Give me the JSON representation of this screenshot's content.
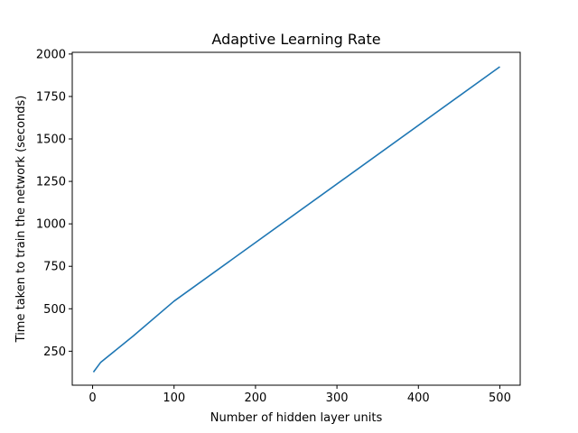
{
  "chart_data": {
    "type": "line",
    "title": "Adaptive Learning Rate",
    "xlabel": "Number of hidden layer units",
    "ylabel": "Time taken to train the network (seconds)",
    "xlim": [
      -25,
      525
    ],
    "ylim": [
      50,
      2010
    ],
    "xticks": [
      0,
      100,
      200,
      300,
      400,
      500
    ],
    "yticks": [
      250,
      500,
      750,
      1000,
      1250,
      1500,
      1750,
      2000
    ],
    "grid": false,
    "series": [
      {
        "color": "#1f77b4",
        "x": [
          1,
          10,
          50,
          100,
          500
        ],
        "y": [
          127,
          185,
          340,
          545,
          1925
        ]
      }
    ]
  }
}
